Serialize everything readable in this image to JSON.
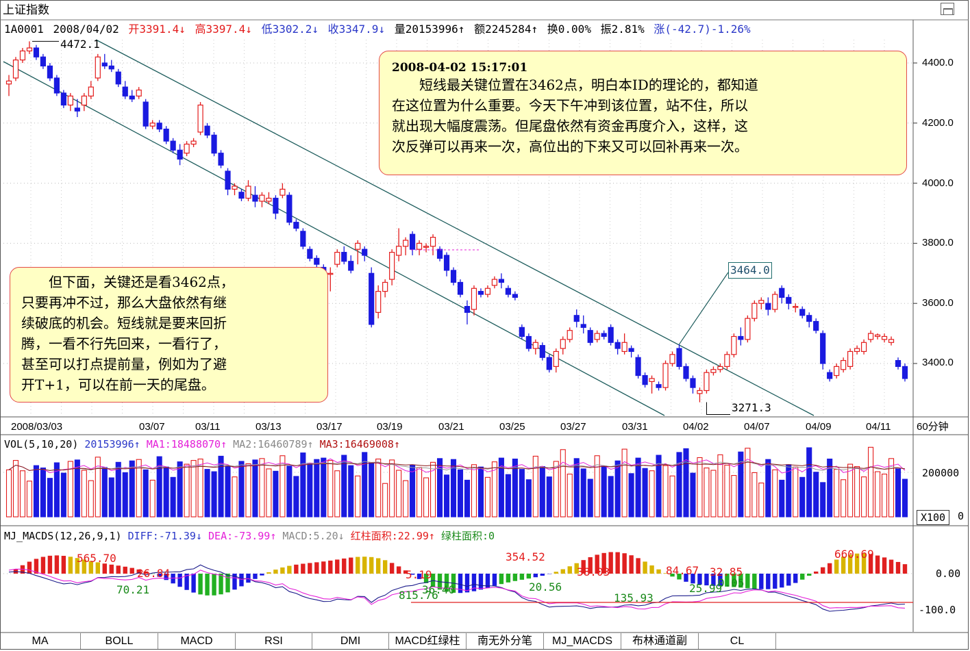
{
  "window": {
    "title": "上证指数"
  },
  "quote": {
    "code": "1A0001",
    "date": "2008/04/02",
    "open": "开3391.4↓",
    "high": "高3397.4↓",
    "low": "低3302.2↓",
    "close": "收3347.9↓",
    "volume": "量20153996↑",
    "amount": "额2245284↑",
    "turnover": "换0.00%",
    "amplitude": "振2.81%",
    "change": "涨(-42.7)-1.26%"
  },
  "price_axis": [
    "4400.0",
    "4200.0",
    "4000.0",
    "3800.0",
    "3600.0",
    "3400.0"
  ],
  "date_axis": [
    "2008/03/03",
    "03/07",
    "03/11",
    "03/13",
    "03/17",
    "03/19",
    "03/21",
    "03/25",
    "03/27",
    "03/31",
    "04/02",
    "04/07",
    "04/09",
    "04/11"
  ],
  "period": "60分钟",
  "price_marks": {
    "high": "4472.1",
    "low": "3271.3",
    "boxed": "3464.0"
  },
  "note_top": {
    "time": "2008-04-02 15:17:01",
    "lines": [
      "　　短线最关键位置在3462点，明白本ID的理论的，都知道",
      "在这位置为什么重要。今天下午冲到该位置，站不住，所以",
      "就出现大幅度震荡。但尾盘依然有资金再度介入，这样，这",
      "次反弹可以再来一次，高位出的下来又可以回补再来一次。"
    ]
  },
  "note_left": {
    "lines": [
      "　　但下面，关键还是看3462点，",
      "只要再冲不过，那么大盘依然有继",
      "续破底的机会。短线就是要来回折",
      "腾，一看不行先回来，一看行了，",
      "甚至可以打点提前量，例如为了避",
      "开T+1，可以在前一天的尾盘。"
    ]
  },
  "volume_panel": {
    "title": "VOL(5,10,20)",
    "value": "20153996↑",
    "ma1": "MA1:18488070↑",
    "ma2": "MA2:16460789↑",
    "ma3": "MA3:16469008↑",
    "axis": [
      "200000",
      "0"
    ],
    "unit": "X100"
  },
  "macd_panel": {
    "title": "MJ_MACDS(12,26,9,1)",
    "diff": "DIFF:-71.39↓",
    "dea": "DEA:-73.99↑",
    "macd": "MACD:5.20↓",
    "red_area": "红柱面积:22.99↑",
    "green_area": "绿柱面积:0",
    "axis": [
      "0.00",
      "-100.0"
    ],
    "labels": [
      "565.70",
      "26.84",
      "70.21",
      "5.19",
      "815.76",
      "36.40",
      "354.52",
      "38.03",
      "20.56",
      "135.93",
      "84.67",
      "32.85",
      "25.99",
      "0.05",
      "660.69"
    ]
  },
  "tabs": [
    "MA",
    "BOLL",
    "MACD",
    "RSI",
    "DMI",
    "MACD红绿柱",
    "南无外分笔",
    "MJ_MACDS",
    "布林通道副",
    "CL"
  ],
  "colors": {
    "up": "#e31b1b",
    "down": "#1a1ae0",
    "channel": "#1d5c5c",
    "note_bg": "#ffffc4",
    "note_border": "#e34a4a"
  },
  "chart_data": {
    "type": "candlestick",
    "title": "上证指数",
    "interval": "60分钟",
    "ylim": [
      3240,
      4500
    ],
    "candles": [
      [
        4330,
        4360,
        4290,
        4340
      ],
      [
        4350,
        4420,
        4340,
        4410
      ],
      [
        4410,
        4450,
        4400,
        4440
      ],
      [
        4440,
        4472,
        4430,
        4450
      ],
      [
        4450,
        4460,
        4410,
        4420
      ],
      [
        4420,
        4430,
        4380,
        4390
      ],
      [
        4390,
        4400,
        4340,
        4350
      ],
      [
        4350,
        4360,
        4290,
        4300
      ],
      [
        4300,
        4310,
        4250,
        4260
      ],
      [
        4260,
        4300,
        4240,
        4290
      ],
      [
        4250,
        4280,
        4220,
        4240
      ],
      [
        4260,
        4300,
        4240,
        4290
      ],
      [
        4290,
        4340,
        4280,
        4320
      ],
      [
        4350,
        4430,
        4340,
        4420
      ],
      [
        4400,
        4430,
        4380,
        4390
      ],
      [
        4390,
        4410,
        4370,
        4380
      ],
      [
        4370,
        4380,
        4320,
        4330
      ],
      [
        4320,
        4340,
        4280,
        4290
      ],
      [
        4290,
        4310,
        4270,
        4280
      ],
      [
        4290,
        4320,
        4280,
        4310
      ],
      [
        4270,
        4280,
        4180,
        4190
      ],
      [
        4190,
        4210,
        4180,
        4200
      ],
      [
        4200,
        4210,
        4170,
        4180
      ],
      [
        4180,
        4190,
        4130,
        4140
      ],
      [
        4140,
        4150,
        4100,
        4110
      ],
      [
        4110,
        4130,
        4060,
        4080
      ],
      [
        4100,
        4140,
        4090,
        4130
      ],
      [
        4130,
        4150,
        4120,
        4140
      ],
      [
        4170,
        4270,
        4160,
        4260
      ],
      [
        4190,
        4200,
        4150,
        4160
      ],
      [
        4160,
        4170,
        4090,
        4100
      ],
      [
        4100,
        4110,
        4050,
        4060
      ],
      [
        4040,
        4050,
        3960,
        3980
      ],
      [
        3980,
        4000,
        3960,
        3990
      ],
      [
        3970,
        3980,
        3940,
        3950
      ],
      [
        3950,
        4010,
        3940,
        3990
      ],
      [
        3960,
        3990,
        3920,
        3940
      ],
      [
        3940,
        3970,
        3920,
        3960
      ],
      [
        3940,
        3970,
        3930,
        3950
      ],
      [
        3950,
        3960,
        3880,
        3900
      ],
      [
        3960,
        4000,
        3950,
        3980
      ],
      [
        3960,
        3970,
        3860,
        3870
      ],
      [
        3870,
        3880,
        3840,
        3850
      ],
      [
        3840,
        3850,
        3780,
        3790
      ],
      [
        3780,
        3790,
        3740,
        3750
      ],
      [
        3750,
        3760,
        3720,
        3730
      ],
      [
        3720,
        3730,
        3680,
        3690
      ],
      [
        3700,
        3720,
        3640,
        3700
      ],
      [
        3730,
        3780,
        3720,
        3770
      ],
      [
        3770,
        3790,
        3730,
        3740
      ],
      [
        3740,
        3760,
        3700,
        3710
      ],
      [
        3780,
        3810,
        3730,
        3800
      ],
      [
        3780,
        3790,
        3740,
        3760
      ],
      [
        3700,
        3720,
        3520,
        3530
      ],
      [
        3570,
        3660,
        3550,
        3640
      ],
      [
        3640,
        3680,
        3620,
        3670
      ],
      [
        3680,
        3780,
        3660,
        3770
      ],
      [
        3760,
        3850,
        3740,
        3790
      ],
      [
        3790,
        3820,
        3760,
        3810
      ],
      [
        3830,
        3840,
        3760,
        3780
      ],
      [
        3780,
        3810,
        3760,
        3800
      ],
      [
        3790,
        3800,
        3770,
        3790
      ],
      [
        3790,
        3830,
        3760,
        3820
      ],
      [
        3780,
        3790,
        3740,
        3750
      ],
      [
        3760,
        3770,
        3690,
        3710
      ],
      [
        3710,
        3720,
        3660,
        3670
      ],
      [
        3670,
        3680,
        3620,
        3630
      ],
      [
        3590,
        3610,
        3530,
        3570
      ],
      [
        3580,
        3660,
        3560,
        3650
      ],
      [
        3640,
        3650,
        3620,
        3630
      ],
      [
        3630,
        3660,
        3620,
        3650
      ],
      [
        3660,
        3690,
        3650,
        3680
      ],
      [
        3680,
        3700,
        3650,
        3670
      ],
      [
        3650,
        3660,
        3620,
        3630
      ],
      [
        3630,
        3640,
        3610,
        3620
      ],
      [
        3520,
        3530,
        3480,
        3490
      ],
      [
        3490,
        3500,
        3440,
        3450
      ],
      [
        3450,
        3480,
        3430,
        3470
      ],
      [
        3460,
        3470,
        3410,
        3420
      ],
      [
        3420,
        3430,
        3370,
        3380
      ],
      [
        3390,
        3450,
        3370,
        3440
      ],
      [
        3450,
        3490,
        3430,
        3480
      ],
      [
        3480,
        3520,
        3470,
        3510
      ],
      [
        3560,
        3580,
        3520,
        3540
      ],
      [
        3530,
        3560,
        3500,
        3520
      ],
      [
        3510,
        3520,
        3460,
        3470
      ],
      [
        3480,
        3510,
        3470,
        3500
      ],
      [
        3500,
        3510,
        3480,
        3490
      ],
      [
        3520,
        3530,
        3460,
        3470
      ],
      [
        3470,
        3480,
        3430,
        3450
      ],
      [
        3440,
        3500,
        3430,
        3470
      ],
      [
        3450,
        3460,
        3420,
        3440
      ],
      [
        3420,
        3430,
        3350,
        3360
      ],
      [
        3360,
        3370,
        3320,
        3330
      ],
      [
        3340,
        3360,
        3300,
        3350
      ],
      [
        3330,
        3340,
        3310,
        3320
      ],
      [
        3320,
        3410,
        3310,
        3400
      ],
      [
        3400,
        3440,
        3390,
        3430
      ],
      [
        3450,
        3464,
        3380,
        3390
      ],
      [
        3390,
        3400,
        3340,
        3350
      ],
      [
        3350,
        3360,
        3300,
        3320
      ],
      [
        3300,
        3320,
        3271,
        3310
      ],
      [
        3310,
        3380,
        3300,
        3370
      ],
      [
        3370,
        3390,
        3360,
        3380
      ],
      [
        3380,
        3400,
        3370,
        3390
      ],
      [
        3390,
        3440,
        3380,
        3430
      ],
      [
        3430,
        3500,
        3420,
        3490
      ],
      [
        3490,
        3520,
        3460,
        3480
      ],
      [
        3480,
        3560,
        3470,
        3550
      ],
      [
        3550,
        3610,
        3540,
        3600
      ],
      [
        3600,
        3620,
        3580,
        3610
      ],
      [
        3600,
        3620,
        3560,
        3580
      ],
      [
        3580,
        3640,
        3570,
        3630
      ],
      [
        3650,
        3660,
        3600,
        3620
      ],
      [
        3620,
        3630,
        3580,
        3600
      ],
      [
        3590,
        3600,
        3570,
        3590
      ],
      [
        3580,
        3590,
        3550,
        3560
      ],
      [
        3560,
        3570,
        3520,
        3540
      ],
      [
        3540,
        3550,
        3500,
        3510
      ],
      [
        3500,
        3510,
        3380,
        3400
      ],
      [
        3370,
        3380,
        3340,
        3350
      ],
      [
        3360,
        3400,
        3350,
        3390
      ],
      [
        3380,
        3420,
        3370,
        3410
      ],
      [
        3390,
        3450,
        3380,
        3440
      ],
      [
        3440,
        3460,
        3430,
        3450
      ],
      [
        3440,
        3480,
        3430,
        3470
      ],
      [
        3480,
        3510,
        3470,
        3500
      ],
      [
        3490,
        3500,
        3480,
        3495
      ],
      [
        3480,
        3500,
        3470,
        3490
      ],
      [
        3470,
        3490,
        3460,
        3480
      ],
      [
        3410,
        3420,
        3380,
        3390
      ],
      [
        3390,
        3400,
        3340,
        3350
      ]
    ]
  }
}
